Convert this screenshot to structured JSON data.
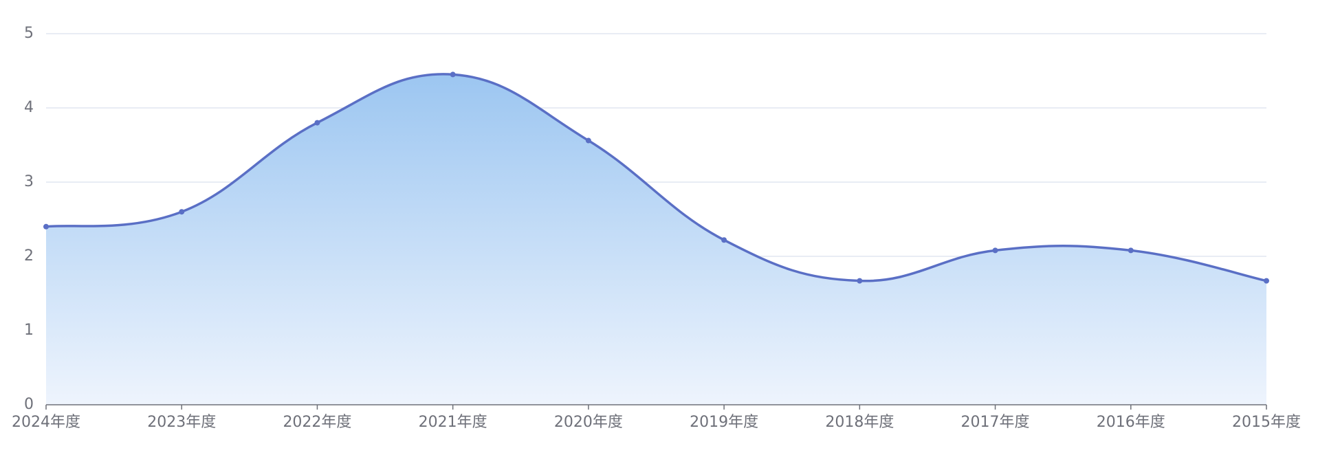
{
  "chart_data": {
    "type": "area",
    "categories": [
      "2024年度",
      "2023年度",
      "2022年度",
      "2021年度",
      "2020年度",
      "2019年度",
      "2018年度",
      "2017年度",
      "2016年度",
      "2015年度"
    ],
    "series": [
      {
        "color": "#5a6fc5",
        "values": [
          2.4,
          2.6,
          3.8,
          4.45,
          3.56,
          2.22,
          1.67,
          2.08,
          2.08,
          1.67
        ]
      }
    ],
    "ylim": [
      0,
      5
    ],
    "yticks": [
      0,
      1,
      2,
      3,
      4,
      5
    ],
    "grid": true,
    "smooth": true
  }
}
